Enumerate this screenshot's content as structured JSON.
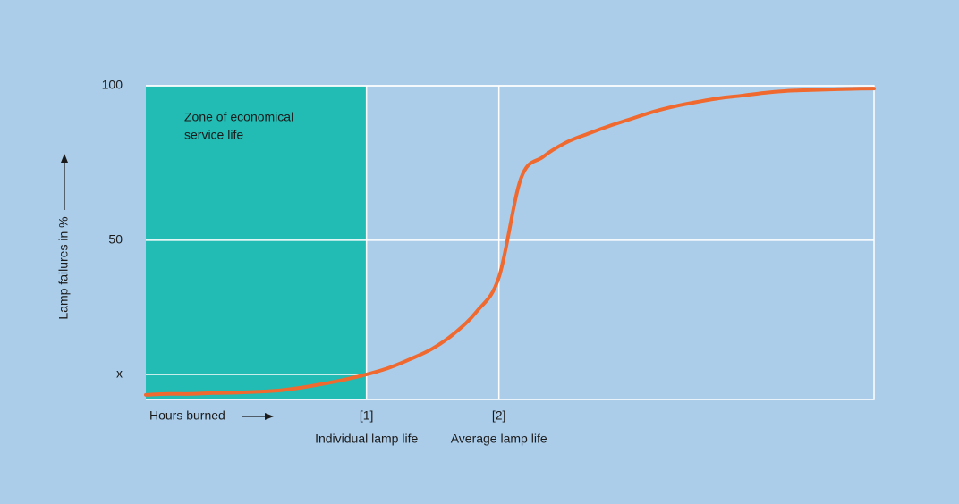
{
  "chart_data": {
    "type": "line",
    "y_label": "Lamp failures in %",
    "x_label": "Hours burned",
    "zone_label": [
      "Zone of economical",
      "service life"
    ],
    "categories": [
      null,
      null,
      null,
      null,
      null,
      null,
      null,
      null,
      null,
      null,
      "[1]",
      null,
      null,
      null,
      null,
      null,
      "[2]",
      null,
      null,
      null,
      null,
      null,
      null,
      null,
      null,
      null,
      null,
      null,
      null,
      null,
      null,
      null,
      null,
      null
    ],
    "category_notes": [
      "Individual lamp life",
      "Average lamp life"
    ],
    "series": [
      {
        "color": "#f0692e",
        "values": [
          0,
          0.3,
          0.3,
          0.6,
          0.7,
          1.0,
          1.4,
          2.3,
          3.5,
          4.9,
          6.6,
          8.7,
          11.6,
          15,
          20,
          27,
          38,
          70,
          77,
          81.5,
          84.4,
          87,
          89.3,
          91.6,
          93.4,
          94.8,
          96,
          96.8,
          97.7,
          98.3,
          98.6,
          98.8,
          99,
          99.1
        ]
      }
    ],
    "zone_color": "#22bcb4",
    "ylim": [
      -1.5,
      100
    ],
    "yticks": [
      {
        "value": 6.6,
        "label": "x"
      },
      50,
      100
    ],
    "grid": true
  }
}
